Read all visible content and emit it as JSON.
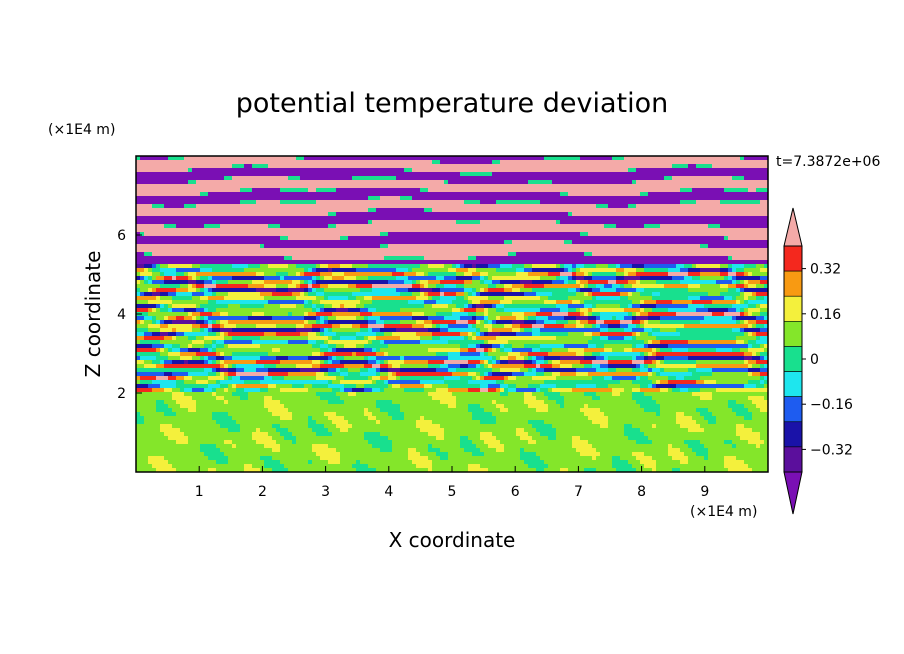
{
  "chart_data": {
    "type": "heatmap",
    "title": "potential temperature deviation",
    "xlabel": "X coordinate",
    "ylabel": "Z coordinate",
    "x_unit": "(×1E4 m)",
    "y_unit": "(×1E4 m)",
    "time_label": "t=7.3872e+06",
    "xlim": [
      0,
      10
    ],
    "ylim": [
      0,
      8
    ],
    "x_ticks": [
      "1",
      "2",
      "3",
      "4",
      "5",
      "6",
      "7",
      "8",
      "9"
    ],
    "y_ticks": [
      "2",
      "4",
      "6"
    ],
    "colorbar": {
      "levels": [
        -0.4,
        -0.32,
        -0.24,
        -0.16,
        -0.08,
        0,
        0.08,
        0.16,
        0.24,
        0.32,
        0.4
      ],
      "labels": [
        "0.32",
        "0.16",
        "0",
        "−0.16",
        "−0.32"
      ],
      "colors": [
        "#7a0fb4",
        "#5b0f9c",
        "#1a12a8",
        "#1e5cf0",
        "#1ee6ee",
        "#18e08e",
        "#84e62a",
        "#f4f03c",
        "#f89a12",
        "#f4281e",
        "#f4aaa8"
      ],
      "extend": "both"
    },
    "bands": [
      {
        "z_from": 0,
        "z_to": 2,
        "pattern": "mostly light green with green/teal swirls"
      },
      {
        "z_from": 2,
        "z_to": 5.3,
        "pattern": "mixed layers of all colors"
      },
      {
        "z_from": 5.3,
        "z_to": 8,
        "pattern": "alternating pink and purple horizontal streaks"
      }
    ]
  }
}
